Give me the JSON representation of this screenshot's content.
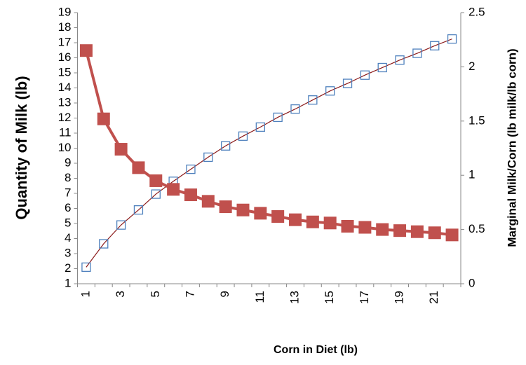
{
  "chart_data": {
    "type": "line",
    "x_label": "Corn in Diet (lb)",
    "y_label": "Quantity of Milk (lb)",
    "y2_label": "Marginal Milk/Corn (lb milk/lb corn)",
    "categories": [
      1,
      null,
      3,
      null,
      5,
      null,
      7,
      null,
      9,
      null,
      11,
      null,
      13,
      null,
      15,
      null,
      17,
      null,
      19,
      null,
      21,
      null
    ],
    "ylim": [
      1,
      19
    ],
    "yticks": [
      1,
      2,
      3,
      4,
      5,
      6,
      7,
      8,
      9,
      10,
      11,
      12,
      13,
      14,
      15,
      16,
      17,
      18,
      19
    ],
    "y2lim": [
      0,
      2.5
    ],
    "y2ticks": [
      0,
      0.5,
      1,
      1.5,
      2,
      2.5
    ],
    "series": [
      {
        "axis": "y",
        "color": "#4f81bd",
        "line_color": "#8b1a1a",
        "line_width": 1.2,
        "marker": "square",
        "marker_filled": false,
        "values": [
          2.1,
          3.65,
          4.9,
          5.9,
          6.95,
          7.8,
          8.6,
          9.4,
          10.15,
          10.8,
          11.4,
          12.05,
          12.6,
          13.2,
          13.8,
          14.3,
          14.85,
          15.35,
          15.85,
          16.3,
          16.8,
          17.25
        ]
      },
      {
        "axis": "y2",
        "color": "#c0504d",
        "line_color": "#c0504d",
        "line_width": 4,
        "marker": "square",
        "marker_filled": true,
        "values": [
          2.15,
          1.52,
          1.24,
          1.07,
          0.95,
          0.87,
          0.82,
          0.76,
          0.71,
          0.68,
          0.65,
          0.62,
          0.59,
          0.57,
          0.56,
          0.53,
          0.52,
          0.5,
          0.49,
          0.48,
          0.47,
          0.45
        ]
      }
    ]
  }
}
